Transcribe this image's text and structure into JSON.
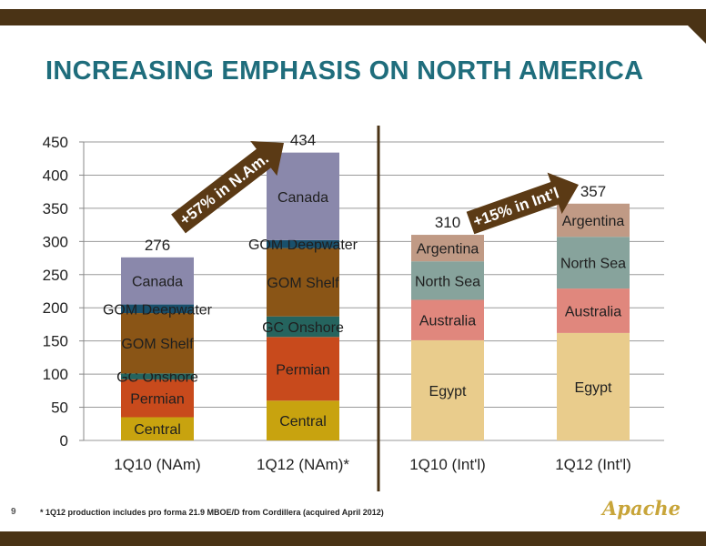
{
  "title": "INCREASING EMPHASIS ON NORTH AMERICA",
  "page_number": "9",
  "footnote": "* 1Q12 production includes  pro forma 21.9 MBOE/D  from Cordillera (acquired April 2012)",
  "logo_text": "Apache",
  "colors": {
    "title": "#1f6d7c",
    "bars_frame": "#4a3315",
    "Central": "#c8a30f",
    "Permian": "#c84a1c",
    "GC Onshore": "#25645e",
    "GOM Shelf": "#8a5516",
    "GOM Deepwater": "#19506c",
    "Canada": "#8a88ab",
    "Egypt": "#e9cc8c",
    "Australia": "#e0877d",
    "North Sea": "#87a39c",
    "Argentina": "#c09a85",
    "arrow": "#5b3a15"
  },
  "chart_data": {
    "type": "bar",
    "stacked": true,
    "ylim": [
      0,
      450
    ],
    "yticks": [
      0,
      50,
      100,
      150,
      200,
      250,
      300,
      350,
      400,
      450
    ],
    "grid": true,
    "categories": [
      "1Q10 (NAm)",
      "1Q12 (NAm)*",
      "1Q10 (Int'l)",
      "1Q12 (Int'l)"
    ],
    "totals": [
      "276",
      "434",
      "310",
      "357"
    ],
    "series": [
      {
        "name": "Central",
        "values": [
          35,
          60,
          0,
          0
        ]
      },
      {
        "name": "Permian",
        "values": [
          57,
          96,
          0,
          0
        ]
      },
      {
        "name": "GC Onshore",
        "values": [
          9,
          31,
          0,
          0
        ]
      },
      {
        "name": "GOM Shelf",
        "values": [
          91,
          103,
          0,
          0
        ]
      },
      {
        "name": "GOM Deepwater",
        "values": [
          13,
          12,
          0,
          0
        ]
      },
      {
        "name": "Canada",
        "values": [
          71,
          132,
          0,
          0
        ]
      },
      {
        "name": "Egypt",
        "values": [
          0,
          0,
          151,
          162
        ]
      },
      {
        "name": "Australia",
        "values": [
          0,
          0,
          61,
          67
        ]
      },
      {
        "name": "North Sea",
        "values": [
          0,
          0,
          58,
          78
        ]
      },
      {
        "name": "Argentina",
        "values": [
          0,
          0,
          40,
          50
        ]
      }
    ],
    "annotations": [
      {
        "text": "+57% in N.Am.",
        "from": "1Q10 (NAm)",
        "to": "1Q12 (NAm)*"
      },
      {
        "text": "+15% in Int’l",
        "from": "1Q10 (Int'l)",
        "to": "1Q12 (Int'l)"
      }
    ]
  }
}
